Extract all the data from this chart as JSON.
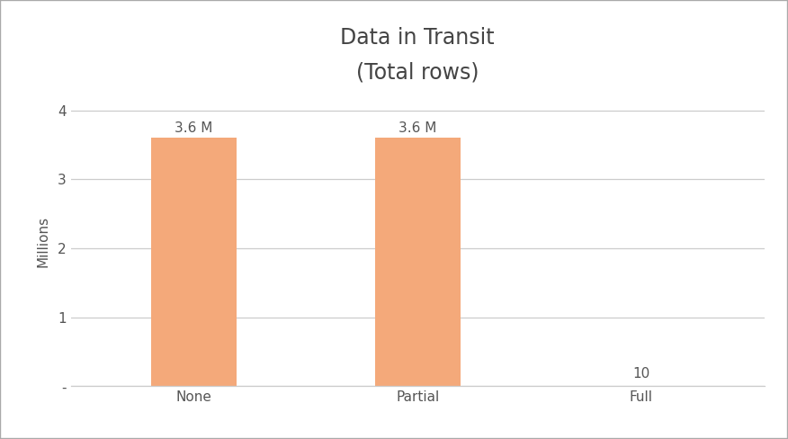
{
  "title": "Data in Transit",
  "subtitle": "(Total rows)",
  "categories": [
    "None",
    "Partial",
    "Full"
  ],
  "values": [
    3600000,
    3600000,
    10
  ],
  "bar_color": "#F4A97A",
  "bar_labels": [
    "3.6 M",
    "3.6 M",
    "10"
  ],
  "ylabel": "Millions",
  "ylim": [
    0,
    4200000
  ],
  "yticks": [
    0,
    1000000,
    2000000,
    3000000,
    4000000
  ],
  "ytick_labels": [
    "-",
    "1",
    "2",
    "3",
    "4"
  ],
  "background_color": "#ffffff",
  "grid_color": "#cccccc",
  "title_fontsize": 17,
  "subtitle_fontsize": 12,
  "label_fontsize": 11,
  "tick_fontsize": 11,
  "bar_width": 0.38
}
